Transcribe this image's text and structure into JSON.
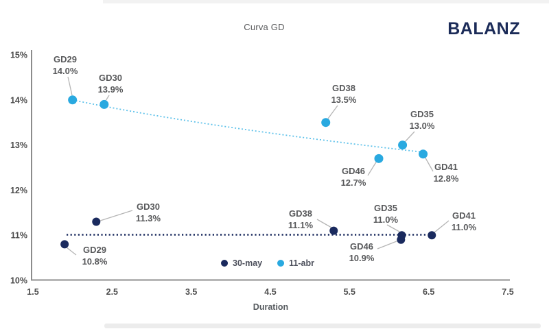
{
  "header": {
    "title": "Curva GD",
    "logo": "BALANZ",
    "logo_color": "#1b2b58"
  },
  "chart_data": {
    "type": "scatter",
    "title": "Curva GD",
    "xlabel": "Duration",
    "ylabel": "",
    "xlim": [
      1.5,
      7.5
    ],
    "ylim": [
      10,
      15
    ],
    "x_tick_labels": [
      "1.5",
      "2.5",
      "3.5",
      "4.5",
      "5.5",
      "6.5",
      "7.5"
    ],
    "y_tick_labels": [
      "10%",
      "11%",
      "12%",
      "13%",
      "14%",
      "15%"
    ],
    "grid": false,
    "legend_position": "bottom-center",
    "series": [
      {
        "name": "30-may",
        "color": "#1a2a5e",
        "trendline": "dotted-flat",
        "points": [
          {
            "bond": "GD29",
            "duration": 1.9,
            "yield": 10.8,
            "yield_label": "10.8%"
          },
          {
            "bond": "GD30",
            "duration": 2.3,
            "yield": 11.3,
            "yield_label": "11.3%"
          },
          {
            "bond": "GD38",
            "duration": 5.3,
            "yield": 11.1,
            "yield_label": "11.1%"
          },
          {
            "bond": "GD46",
            "duration": 6.15,
            "yield": 10.9,
            "yield_label": "10.9%"
          },
          {
            "bond": "GD35",
            "duration": 6.16,
            "yield": 11.0,
            "yield_label": "11.0%"
          },
          {
            "bond": "GD41",
            "duration": 6.54,
            "yield": 11.0,
            "yield_label": "11.0%"
          }
        ]
      },
      {
        "name": "11-abr",
        "color": "#29a9e0",
        "trendline": "dotted-curve",
        "points": [
          {
            "bond": "GD29",
            "duration": 2.0,
            "yield": 14.0,
            "yield_label": "14.0%"
          },
          {
            "bond": "GD30",
            "duration": 2.4,
            "yield": 13.9,
            "yield_label": "13.9%"
          },
          {
            "bond": "GD38",
            "duration": 5.2,
            "yield": 13.5,
            "yield_label": "13.5%"
          },
          {
            "bond": "GD46",
            "duration": 5.87,
            "yield": 12.7,
            "yield_label": "12.7%"
          },
          {
            "bond": "GD35",
            "duration": 6.17,
            "yield": 13.0,
            "yield_label": "13.0%"
          },
          {
            "bond": "GD41",
            "duration": 6.43,
            "yield": 12.8,
            "yield_label": "12.8%"
          }
        ]
      }
    ]
  }
}
